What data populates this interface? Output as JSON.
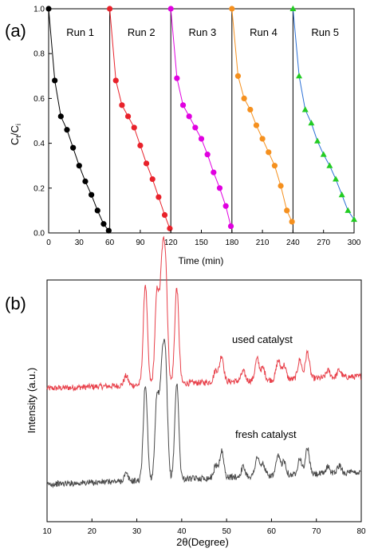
{
  "chart_data": [
    {
      "type": "line",
      "panel_label": "(a)",
      "xlabel": "Time (min)",
      "ylabel": "Ct/Ci",
      "ylabel_main": "C",
      "ylabel_sub1": "t",
      "ylabel_slash": "/C",
      "ylabel_sub2": "i",
      "xlim": [
        0,
        300
      ],
      "ylim": [
        0,
        1.0
      ],
      "xticks": [
        0,
        30,
        60,
        90,
        120,
        150,
        180,
        210,
        240,
        270,
        300
      ],
      "yticks": [
        0.0,
        0.2,
        0.4,
        0.6,
        0.8,
        1.0
      ],
      "ytick_labels": [
        "0.0",
        "0.2",
        "0.4",
        "0.6",
        "0.8",
        "1.0"
      ],
      "separators": [
        60,
        120,
        180,
        240
      ],
      "legend_placement": "run labels at top of each segment",
      "series": [
        {
          "name": "Run 1",
          "color": "#000000",
          "marker": "circle",
          "x": [
            0,
            6,
            12,
            18,
            24,
            30,
            36,
            42,
            48,
            54,
            59
          ],
          "y": [
            1.0,
            0.68,
            0.52,
            0.46,
            0.38,
            0.3,
            0.23,
            0.17,
            0.1,
            0.04,
            0.01
          ]
        },
        {
          "name": "Run 2",
          "color": "#e8212a",
          "marker": "circle",
          "x": [
            60,
            66,
            72,
            78,
            84,
            90,
            96,
            102,
            108,
            114,
            119
          ],
          "y": [
            1.0,
            0.68,
            0.57,
            0.52,
            0.47,
            0.39,
            0.31,
            0.24,
            0.16,
            0.08,
            0.02
          ]
        },
        {
          "name": "Run 3",
          "color": "#e000e0",
          "marker": "circle",
          "x": [
            120,
            126,
            132,
            138,
            144,
            150,
            156,
            162,
            168,
            174,
            179
          ],
          "y": [
            1.0,
            0.69,
            0.57,
            0.52,
            0.47,
            0.42,
            0.35,
            0.27,
            0.2,
            0.12,
            0.03
          ]
        },
        {
          "name": "Run 4",
          "color": "#f5901e",
          "marker": "circle",
          "x": [
            180,
            186,
            192,
            198,
            204,
            210,
            216,
            222,
            228,
            234,
            239
          ],
          "y": [
            1.0,
            0.7,
            0.6,
            0.55,
            0.48,
            0.42,
            0.36,
            0.3,
            0.21,
            0.1,
            0.05
          ]
        },
        {
          "name": "Run 5",
          "color": "#22cc22",
          "line_color": "#2a6fd6",
          "marker": "triangle",
          "x": [
            240,
            246,
            252,
            258,
            264,
            270,
            276,
            282,
            288,
            294,
            300
          ],
          "y": [
            1.0,
            0.7,
            0.55,
            0.49,
            0.41,
            0.35,
            0.3,
            0.24,
            0.17,
            0.1,
            0.06
          ]
        }
      ]
    },
    {
      "type": "line",
      "panel_label": "(b)",
      "xlabel": "2θ(Degree)",
      "ylabel": "Intensity (a.u.)",
      "xlim": [
        10,
        80
      ],
      "xticks": [
        10,
        20,
        30,
        40,
        50,
        60,
        70,
        80
      ],
      "series": [
        {
          "name": "used catalyst",
          "color": "#e8404a",
          "baseline": 0.4,
          "slope": 0.05,
          "peaks": [
            [
              27.6,
              0.04
            ],
            [
              31.9,
              0.42
            ],
            [
              34.5,
              0.38
            ],
            [
              35.6,
              0.44
            ],
            [
              36.4,
              0.46
            ],
            [
              38.9,
              0.4
            ],
            [
              47.6,
              0.05
            ],
            [
              48.9,
              0.11
            ],
            [
              53.7,
              0.04
            ],
            [
              56.8,
              0.09
            ],
            [
              58.1,
              0.05
            ],
            [
              61.5,
              0.08
            ],
            [
              62.8,
              0.06
            ],
            [
              66.3,
              0.08
            ],
            [
              68.0,
              0.11
            ],
            [
              72.6,
              0.03
            ],
            [
              75.1,
              0.03
            ]
          ]
        },
        {
          "name": "fresh catalyst",
          "color": "#4a4a4a",
          "baseline": 0.0,
          "slope": 0.05,
          "peaks": [
            [
              27.6,
              0.03
            ],
            [
              31.9,
              0.4
            ],
            [
              34.5,
              0.35
            ],
            [
              35.6,
              0.41
            ],
            [
              36.4,
              0.45
            ],
            [
              38.9,
              0.4
            ],
            [
              47.6,
              0.05
            ],
            [
              48.9,
              0.11
            ],
            [
              53.7,
              0.04
            ],
            [
              56.8,
              0.08
            ],
            [
              58.1,
              0.05
            ],
            [
              61.5,
              0.08
            ],
            [
              62.8,
              0.06
            ],
            [
              66.3,
              0.07
            ],
            [
              68.0,
              0.11
            ],
            [
              72.6,
              0.03
            ],
            [
              75.1,
              0.03
            ]
          ]
        }
      ]
    }
  ]
}
